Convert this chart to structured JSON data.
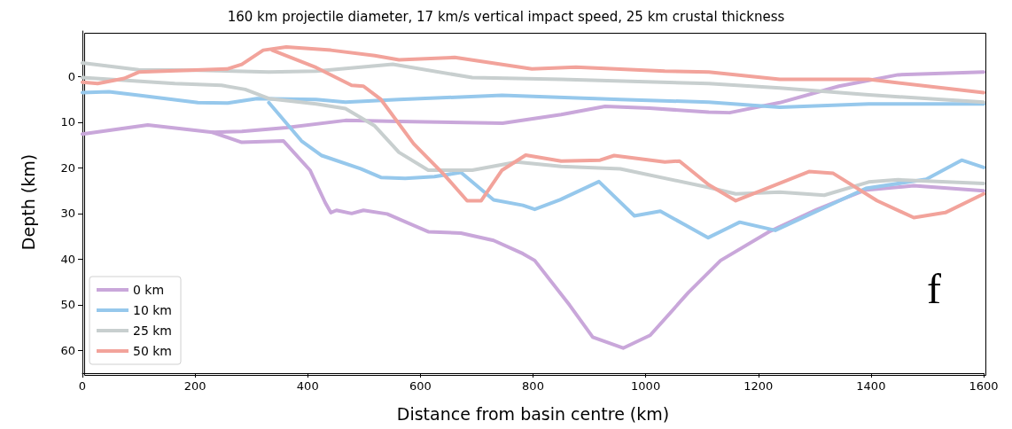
{
  "chart_data": {
    "type": "line",
    "title": "160 km projectile diameter, 17 km/s vertical impact speed, 25 km crustal thickness",
    "xlabel": "Distance from basin centre (km)",
    "ylabel": "Depth (km)",
    "annotations": [
      "f"
    ],
    "xlim": [
      0,
      1600
    ],
    "xticks": [
      0,
      200,
      400,
      600,
      800,
      1000,
      1200,
      1400,
      1600
    ],
    "ylim": [
      65,
      -10
    ],
    "yticks": [
      0,
      10,
      20,
      30,
      40,
      50,
      60
    ],
    "grid": false,
    "legend": "bottom left",
    "marker": "none",
    "line_style": "solid",
    "series": [
      {
        "name": "0 km",
        "color": "#c9a7da",
        "x": [
          0,
          116,
          231,
          283,
          357,
          404,
          431,
          441,
          451,
          478,
          499,
          541,
          614,
          672,
          730,
          782,
          803,
          865,
          906,
          960,
          1008,
          1076,
          1133,
          1219,
          1304,
          1389,
          1476,
          1600
        ],
        "values": [
          12.6,
          10.6,
          12.2,
          14.4,
          14.1,
          20.5,
          27.6,
          29.8,
          29.3,
          30,
          29.3,
          30.1,
          34,
          34.3,
          35.9,
          38.8,
          40.3,
          50.1,
          57.1,
          59.5,
          56.7,
          47.3,
          40.3,
          34,
          29.1,
          24.9,
          23.9,
          25
        ]
      },
      {
        "color": "#c9a7da",
        "x": [
          231,
          283,
          362,
          467,
          562,
          746,
          850,
          928,
          1007,
          1112,
          1149,
          1238,
          1343,
          1448,
          1600
        ],
        "values": [
          12.2,
          12,
          11.2,
          9.6,
          9.8,
          10.2,
          8.3,
          6.5,
          6.9,
          7.8,
          7.9,
          5.7,
          2.1,
          -0.4,
          -1
        ]
      },
      {
        "name": "10 km",
        "color": "#96c8ec",
        "x": [
          0,
          47,
          100,
          205,
          258,
          310,
          415,
          467,
          562,
          745,
          955,
          1112,
          1238,
          1396,
          1600
        ],
        "values": [
          3.5,
          3.3,
          4.1,
          5.7,
          5.8,
          4.8,
          5,
          5.6,
          5,
          4.1,
          5,
          5.6,
          6.7,
          6,
          6
        ]
      },
      {
        "color": "#96c8ec",
        "x": [
          331,
          389,
          425,
          494,
          530,
          573,
          625,
          672,
          730,
          782,
          803,
          848,
          917,
          980,
          1026,
          1111,
          1167,
          1230,
          1304,
          1391,
          1498,
          1561,
          1600
        ],
        "values": [
          5.7,
          14.1,
          17.3,
          20.2,
          22.1,
          22.3,
          21.9,
          21,
          27,
          28.2,
          29.1,
          27,
          23,
          30.5,
          29.5,
          35.3,
          31.9,
          33.7,
          29.5,
          24.5,
          22.5,
          18.3,
          19.9
        ]
      },
      {
        "name": "25 km",
        "color": "#c8cfcf",
        "x": [
          0,
          100,
          205,
          331,
          415,
          551,
          692,
          850,
          1112,
          1238,
          1396,
          1600
        ],
        "values": [
          -3,
          -1.5,
          -1.4,
          -1,
          -1.2,
          -2.7,
          0.2,
          0.6,
          1.5,
          2.5,
          4,
          5.6
        ]
      },
      {
        "color": "#c8cfcf",
        "x": [
          0,
          164,
          247,
          289,
          331,
          415,
          467,
          519,
          562,
          614,
          692,
          771,
          850,
          955,
          1112,
          1160,
          1238,
          1317,
          1396,
          1448,
          1600
        ],
        "values": [
          0.2,
          1.5,
          1.9,
          2.8,
          4.8,
          6,
          7,
          10.8,
          16.6,
          20.5,
          20.5,
          18.7,
          19.7,
          20.2,
          24.3,
          25.7,
          25.3,
          26,
          23.1,
          22.6,
          23.4
        ]
      },
      {
        "name": "50 km",
        "color": "#f2a39b",
        "x": [
          0,
          27,
          74,
          100,
          258,
          283,
          321,
          362,
          441,
          519,
          562,
          661,
          798,
          876,
          1034,
          1112,
          1238,
          1396,
          1600
        ],
        "values": [
          1.2,
          1.5,
          0.4,
          -1,
          -1.7,
          -2.7,
          -5.8,
          -6.5,
          -5.8,
          -4.6,
          -3.7,
          -4.2,
          -1.7,
          -2.1,
          -1.2,
          -1,
          0.6,
          0.6,
          3.5
        ]
      },
      {
        "color": "#f2a39b",
        "x": [
          337,
          415,
          478,
          499,
          530,
          588,
          640,
          683,
          708,
          745,
          787,
          850,
          919,
          944,
          1034,
          1060,
          1112,
          1160,
          1290,
          1333,
          1411,
          1476,
          1532,
          1600
        ],
        "values": [
          -5.8,
          -2,
          1.9,
          2.1,
          5,
          14.7,
          21.2,
          27.2,
          27.2,
          20.5,
          17.2,
          18.5,
          18.3,
          17.3,
          18.7,
          18.5,
          23.7,
          27.2,
          20.8,
          21.2,
          27.2,
          30.9,
          29.8,
          25.7
        ]
      }
    ]
  }
}
